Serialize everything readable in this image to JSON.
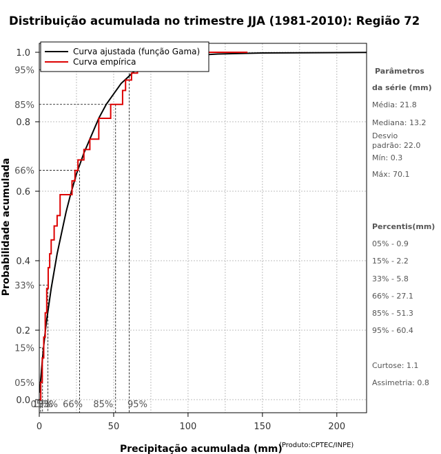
{
  "chart_data": {
    "type": "line",
    "title": "Distribuição acumulada no trimestre JJA (1981-2010): Região 72",
    "xlabel": "Precipitação acumulada (mm)",
    "ylabel": "Probabilidade acumulada",
    "credit": "(Produto:CPTEC/INPE)",
    "xlim": [
      0,
      220
    ],
    "ylim": [
      0,
      1
    ],
    "x_ticks": [
      0,
      50,
      100,
      150,
      200
    ],
    "y_ticks": [
      0.0,
      0.2,
      0.4,
      0.6,
      0.8,
      1.0
    ],
    "y_tick_labels": [
      "0.0",
      "0.2",
      "0.4",
      "0.6",
      "0.8",
      "1.0"
    ],
    "x_grid": [
      0,
      25,
      50,
      75,
      100,
      125,
      150,
      175,
      200
    ],
    "y_grid": [
      0.0,
      0.2,
      0.4,
      0.6,
      0.8,
      1.0
    ],
    "legend": {
      "position": "top-left",
      "entries": [
        {
          "label": "Curva ajustada (função Gama)",
          "color": "#000000"
        },
        {
          "label": "Curva empírica",
          "color": "#dd0000"
        }
      ]
    },
    "series": [
      {
        "name": "Curva ajustada (função Gama)",
        "color": "#000000",
        "x": [
          0.3,
          1,
          2,
          3,
          4,
          5,
          6,
          8,
          10,
          12,
          15,
          18,
          21,
          25,
          30,
          35,
          40,
          45,
          50,
          55,
          60,
          65,
          70,
          80,
          90,
          100,
          120,
          150,
          200,
          220
        ],
        "y": [
          0.02,
          0.06,
          0.11,
          0.155,
          0.195,
          0.23,
          0.26,
          0.32,
          0.37,
          0.42,
          0.48,
          0.54,
          0.59,
          0.65,
          0.71,
          0.76,
          0.81,
          0.85,
          0.88,
          0.91,
          0.93,
          0.95,
          0.96,
          0.975,
          0.985,
          0.99,
          0.995,
          0.998,
          0.999,
          0.9995
        ]
      },
      {
        "name": "Curva empírica",
        "color": "#dd0000",
        "step": true,
        "x": [
          0.3,
          1,
          2,
          3,
          4,
          5,
          6,
          7,
          8,
          10,
          12,
          14,
          20,
          22,
          24,
          26,
          28,
          30,
          34,
          36,
          40,
          42,
          48,
          52,
          56,
          57,
          58,
          60,
          62,
          64,
          66,
          140
        ],
        "y": [
          0.0,
          0.05,
          0.12,
          0.18,
          0.25,
          0.32,
          0.38,
          0.42,
          0.46,
          0.5,
          0.53,
          0.59,
          0.59,
          0.63,
          0.66,
          0.69,
          0.69,
          0.72,
          0.75,
          0.75,
          0.81,
          0.81,
          0.85,
          0.85,
          0.89,
          0.89,
          0.92,
          0.92,
          0.94,
          0.94,
          1.0,
          1.0
        ]
      }
    ],
    "percentile_lines": [
      {
        "label": "05%",
        "p": 0.05,
        "x": 0.9
      },
      {
        "label": "15%",
        "p": 0.15,
        "x": 2.2
      },
      {
        "label": "33%",
        "p": 0.33,
        "x": 5.8
      },
      {
        "label": "66%",
        "p": 0.66,
        "x": 27.1
      },
      {
        "label": "85%",
        "p": 0.85,
        "x": 51.3
      },
      {
        "label": "95%",
        "p": 0.95,
        "x": 60.4
      }
    ],
    "bottom_percentile_labels": [
      {
        "label": "05%",
        "x": 0.9
      },
      {
        "label": "15%",
        "x": 2.2
      },
      {
        "label": "33%",
        "x": 5.8
      },
      {
        "label": "66%",
        "x": 22.5
      },
      {
        "label": "85%",
        "x": 43
      },
      {
        "label": "95%",
        "x": 66
      }
    ],
    "params": {
      "heading1": "Parâmetros",
      "heading2": "da série (mm)",
      "media": "Média: 21.8",
      "mediana": "Mediana: 13.2",
      "desvio1": "Desvio",
      "desvio2": "padrão: 22.0",
      "min": "Mín: 0.3",
      "max": "Máx: 70.1",
      "percentis_heading": "Percentis(mm)",
      "percentis": [
        "05% - 0.9",
        "15% - 2.2",
        "33% - 5.8",
        "66% - 27.1",
        "85% - 51.3",
        "95% - 60.4"
      ],
      "curtose": "Curtose: 1.1",
      "assimetria": "Assimetria: 0.8"
    }
  }
}
